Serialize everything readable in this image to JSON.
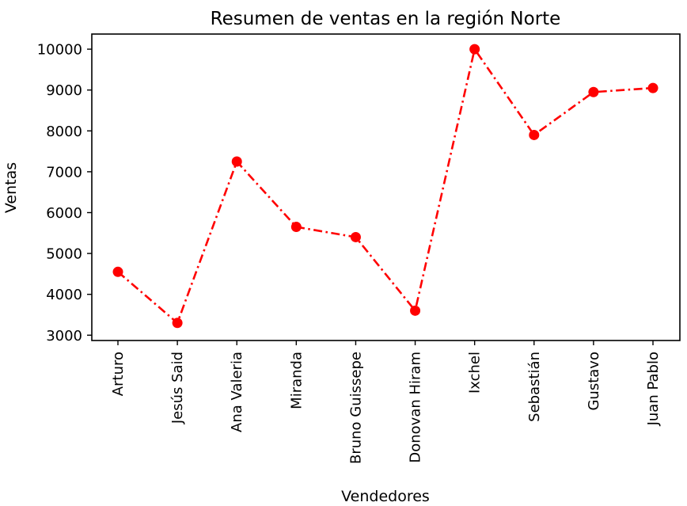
{
  "chart_data": {
    "type": "line",
    "title": "Resumen de ventas en la región Norte",
    "xlabel": "Vendedores",
    "ylabel": "Ventas",
    "categories": [
      "Arturo",
      "Jesús Said",
      "Ana Valeria",
      "Miranda",
      "Bruno Guissepe",
      "Donovan Hiram",
      "Ixchel",
      "Sebastián",
      "Gustavo",
      "Juan Pablo"
    ],
    "series": [
      {
        "values": [
          4550,
          3300,
          7250,
          5650,
          5400,
          3600,
          10000,
          7900,
          8950,
          9050
        ],
        "color": "#ff0000",
        "line_style": "dash-dot",
        "marker": "circle"
      }
    ],
    "yticks": [
      3000,
      4000,
      5000,
      6000,
      7000,
      8000,
      9000,
      10000
    ],
    "ylim": [
      2870,
      10370
    ],
    "grid": false,
    "legend": false
  }
}
